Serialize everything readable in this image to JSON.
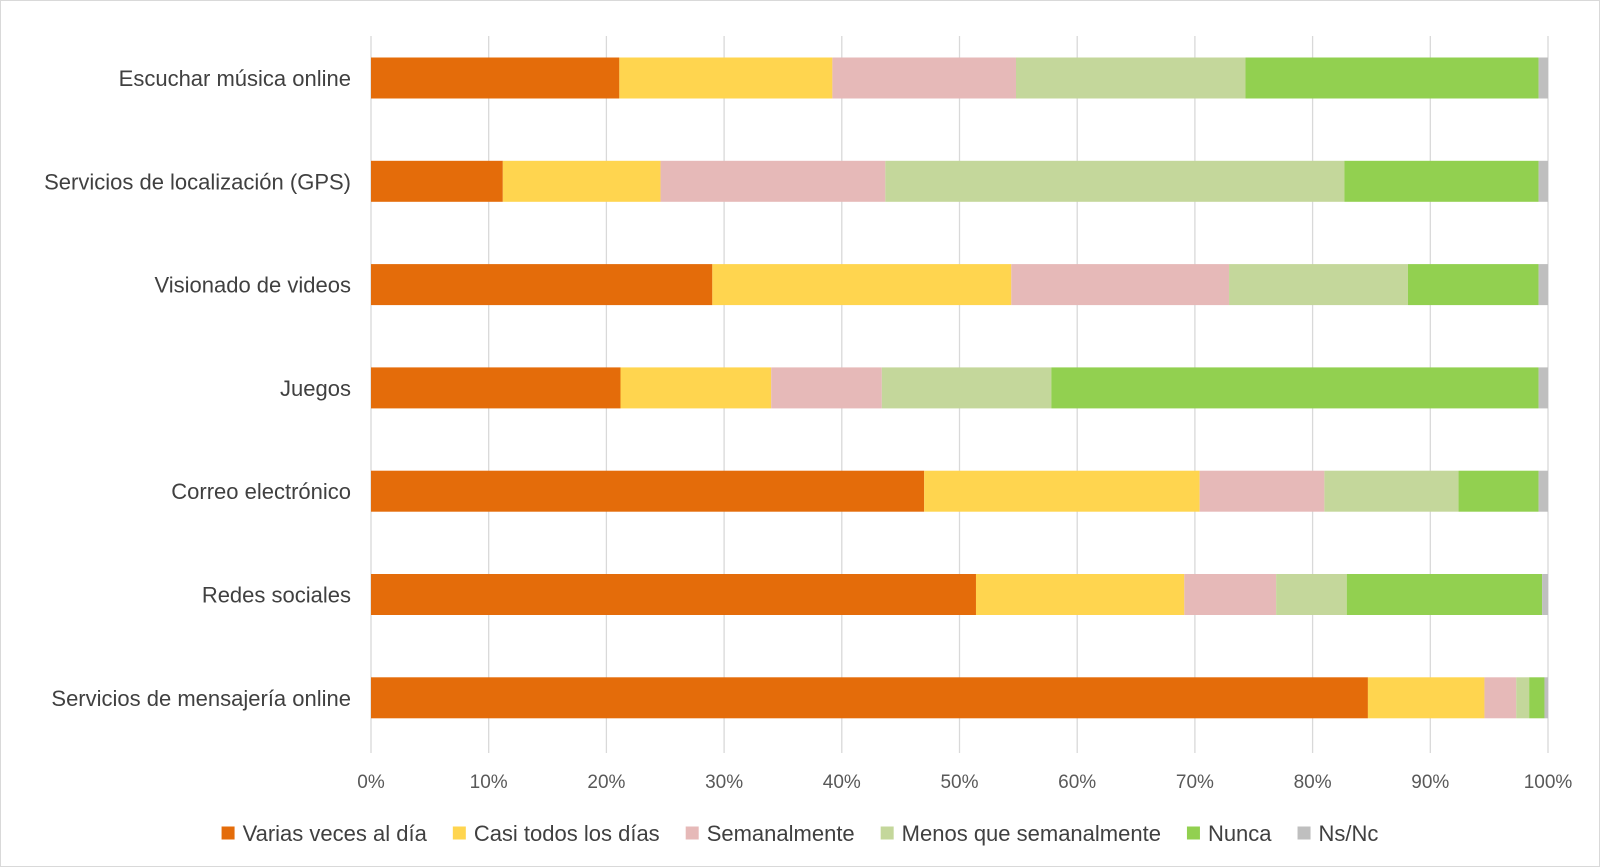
{
  "chart_data": {
    "type": "bar",
    "orientation": "horizontal",
    "stacked": "percent",
    "categories": [
      "Escuchar música online",
      "Servicios de localización (GPS)",
      "Visionado de videos",
      "Juegos",
      "Correo electrónico",
      "Redes sociales",
      "Servicios de mensajería online"
    ],
    "series": [
      {
        "name": "Varias veces al día",
        "color": "#e46c0a",
        "values": [
          21.1,
          11.2,
          29.0,
          21.2,
          47.0,
          51.4,
          84.7
        ]
      },
      {
        "name": "Casi todos los días",
        "color": "#ffd54f",
        "values": [
          18.1,
          13.4,
          25.4,
          12.8,
          23.4,
          17.7,
          9.9
        ]
      },
      {
        "name": "Semanalmente",
        "color": "#e6b9b8",
        "values": [
          15.6,
          19.1,
          18.5,
          9.4,
          10.6,
          7.8,
          2.7
        ]
      },
      {
        "name": "Menos que semanalmente",
        "color": "#c4d79b",
        "values": [
          19.5,
          39.0,
          15.2,
          14.4,
          11.4,
          6.0,
          1.1
        ]
      },
      {
        "name": "Nunca",
        "color": "#92d050",
        "values": [
          24.9,
          16.5,
          11.1,
          41.4,
          6.8,
          16.6,
          1.3
        ]
      },
      {
        "name": "Ns/Nc",
        "color": "#bfbfbf",
        "values": [
          0.8,
          0.8,
          0.8,
          0.8,
          0.8,
          0.5,
          0.3
        ]
      }
    ],
    "x_ticks": [
      "0%",
      "10%",
      "20%",
      "30%",
      "40%",
      "50%",
      "60%",
      "70%",
      "80%",
      "90%",
      "100%"
    ],
    "xlim": [
      0,
      100
    ],
    "grid": true,
    "legend_position": "bottom",
    "title": "",
    "xlabel": "",
    "ylabel": ""
  }
}
